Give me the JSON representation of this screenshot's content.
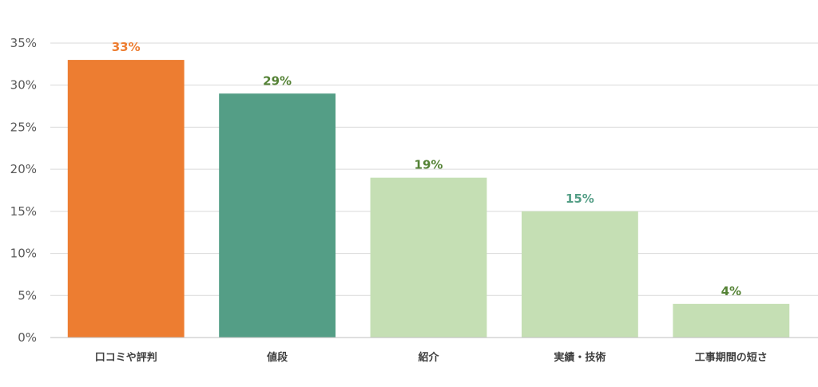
{
  "chart_data": {
    "type": "bar",
    "title": "",
    "xlabel": "",
    "ylabel": "",
    "categories": [
      "口コミや評判",
      "値段",
      "紹介",
      "実績・技術",
      "工事期間の短さ"
    ],
    "values": [
      33,
      29,
      19,
      15,
      4
    ],
    "data_labels": [
      "33%",
      "29%",
      "19%",
      "15%",
      "4%"
    ],
    "bar_colors": [
      "#ED7D31",
      "#549E86",
      "#C5DFB4",
      "#C5DFB4",
      "#C5DFB4"
    ],
    "label_colors": [
      "#ED7D31",
      "#548235",
      "#548235",
      "#549E86",
      "#548235"
    ],
    "ylim": [
      0,
      35
    ],
    "yticks": [
      0,
      5,
      10,
      15,
      20,
      25,
      30,
      35
    ],
    "ytick_labels": [
      "0%",
      "5%",
      "10%",
      "15%",
      "20%",
      "25%",
      "30%",
      "35%"
    ],
    "grid": true,
    "legend": "none"
  }
}
